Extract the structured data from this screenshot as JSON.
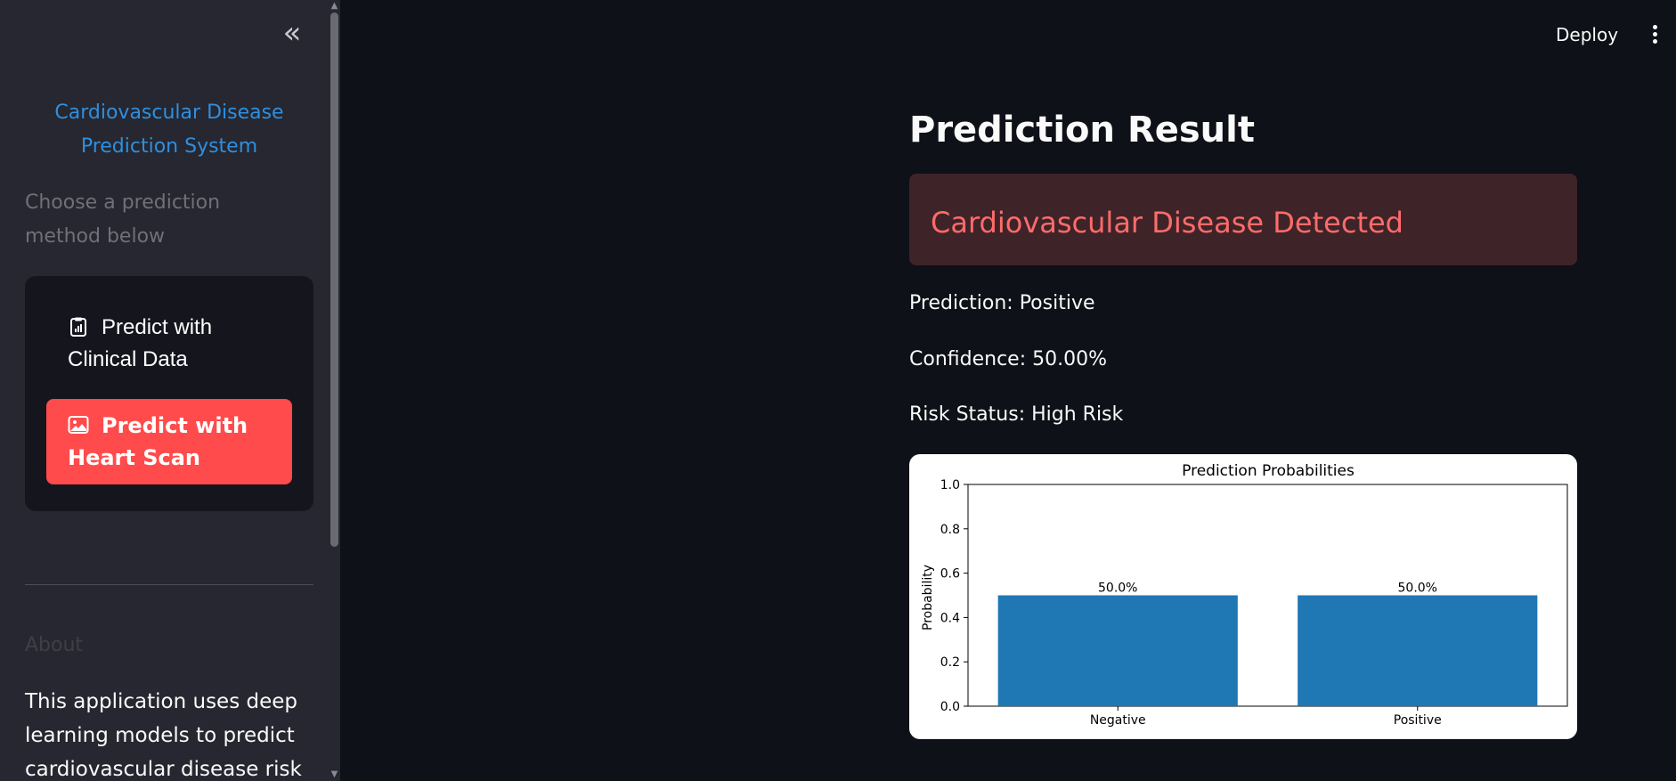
{
  "sidebar": {
    "title": "Cardiovascular Disease Prediction System",
    "subtitle": "Choose a prediction method below",
    "methods": [
      {
        "label": "Predict with Clinical Data",
        "icon": "clipboard-chart-icon"
      },
      {
        "label": "Predict with Heart Scan",
        "icon": "image-icon",
        "active": true
      }
    ],
    "about_heading": "About",
    "about_text": "This application uses deep learning models to predict cardiovascular disease risk",
    "collapse_icon": "double-chevron-left-icon"
  },
  "header": {
    "deploy_label": "Deploy",
    "menu_icon": "kebab-menu-icon"
  },
  "main": {
    "title": "Prediction Result",
    "alert_text": "Cardiovascular Disease Detected",
    "prediction_line": "Prediction: Positive",
    "confidence_line": "Confidence: 50.00%",
    "risk_line": "Risk Status: High Risk"
  },
  "colors": {
    "accent": "#ff4b4b",
    "alert_bg": "#3e2428",
    "alert_text": "#ff6b6b",
    "bar": "#1f77b4",
    "link_blue": "#2e8fe0"
  },
  "chart_data": {
    "type": "bar",
    "title": "Prediction Probabilities",
    "xlabel": "",
    "ylabel": "Probability",
    "categories": [
      "Negative",
      "Positive"
    ],
    "values": [
      0.5,
      0.5
    ],
    "data_labels": [
      "50.0%",
      "50.0%"
    ],
    "ylim": [
      0,
      1.0
    ],
    "yticks": [
      "0.0",
      "0.2",
      "0.4",
      "0.6",
      "0.8",
      "1.0"
    ],
    "grid": false
  }
}
